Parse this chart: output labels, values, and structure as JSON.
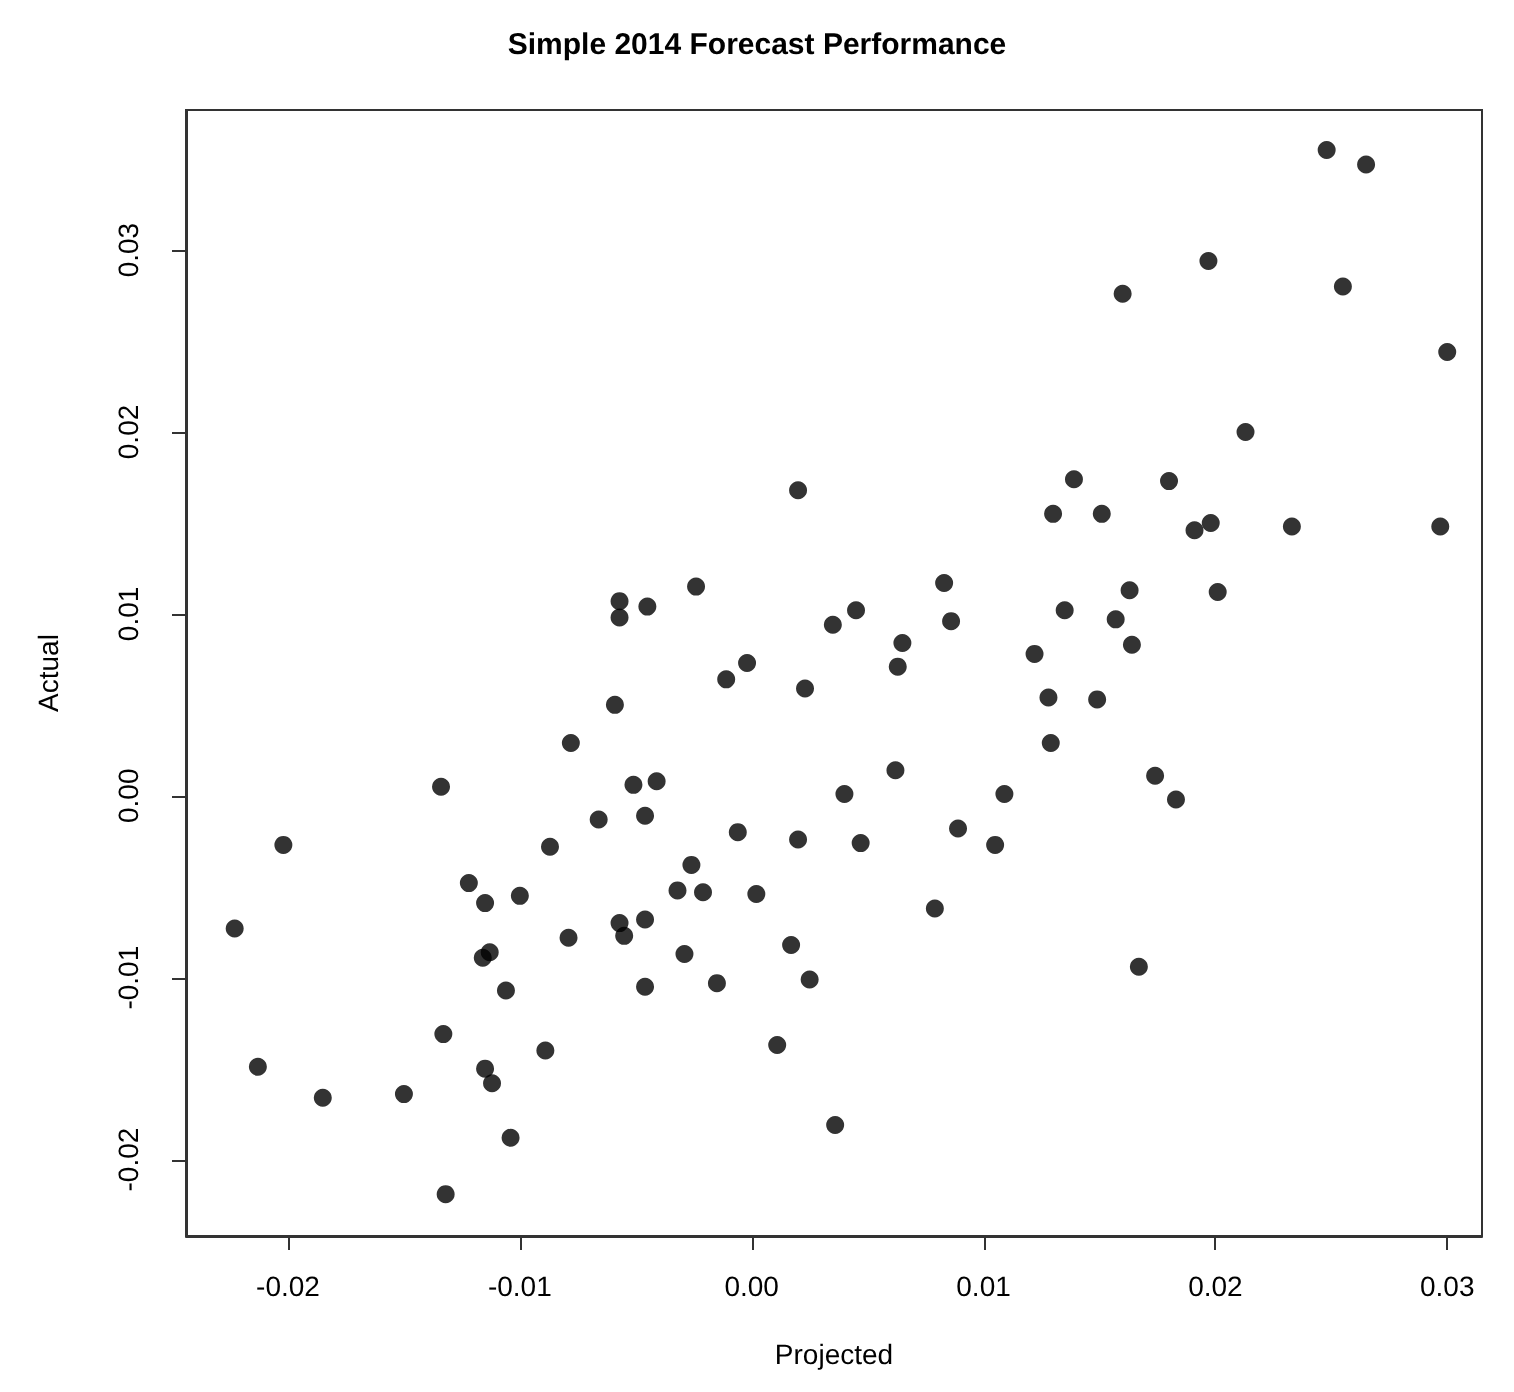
{
  "chart_data": {
    "type": "scatter",
    "title": "Simple 2014 Forecast Performance",
    "xlabel": "Projected",
    "ylabel": "Actual",
    "xlim": [
      -0.0244,
      0.0315
    ],
    "ylim": [
      -0.0242,
      0.0377
    ],
    "xticks": [
      {
        "value": -0.02,
        "label": "-0.02"
      },
      {
        "value": -0.01,
        "label": "-0.01"
      },
      {
        "value": 0,
        "label": "0.00"
      },
      {
        "value": 0.01,
        "label": "0.01"
      },
      {
        "value": 0.02,
        "label": "0.02"
      },
      {
        "value": 0.03,
        "label": "0.03"
      }
    ],
    "yticks": [
      {
        "value": -0.02,
        "label": "-0.02"
      },
      {
        "value": -0.01,
        "label": "-0.01"
      },
      {
        "value": 0,
        "label": "0.00"
      },
      {
        "value": 0.01,
        "label": "0.01"
      },
      {
        "value": 0.02,
        "label": "0.02"
      },
      {
        "value": 0.03,
        "label": "0.03"
      }
    ],
    "grid": false,
    "marker": "circle",
    "series": [
      {
        "color": "#000000",
        "x": [
          -0.0059,
          -0.0078,
          -0.0051,
          -0.0066,
          -0.0087,
          -0.0202,
          -0.0134,
          -0.0122,
          -0.0115,
          -0.01,
          -0.0223,
          -0.0079,
          -0.0057,
          -0.0055,
          -0.0116,
          -0.0113,
          -0.0106,
          -0.0133,
          -0.0213,
          -0.0185,
          -0.015,
          -0.0115,
          -0.0112,
          -0.0089,
          -0.0104,
          -0.0132,
          0.002,
          0.013,
          -0.0024,
          -0.0057,
          -0.0057,
          -0.0045,
          0.0083,
          0.0086,
          0.0045,
          0.0035,
          0.0065,
          0.0063,
          -0.0002,
          -0.0011,
          0.0023,
          0.0122,
          0.0128,
          0.0129,
          -0.0041,
          -0.0046,
          0.0062,
          0.004,
          0.0109,
          -0.0006,
          0.002,
          0.0047,
          0.0089,
          0.0105,
          -0.0026,
          -0.0032,
          -0.0021,
          0.0002,
          0.0079,
          -0.0046,
          -0.0029,
          0.0017,
          -0.0046,
          -0.0015,
          0.0025,
          0.0011,
          0.0036,
          0.0248,
          0.0265,
          0.0197,
          0.016,
          0.0255,
          0.03,
          0.0213,
          0.0139,
          0.018,
          0.0151,
          0.0191,
          0.0198,
          0.0233,
          0.0297,
          0.0163,
          0.0201,
          0.0135,
          0.0157,
          0.0164,
          0.0149,
          0.0174,
          0.0183,
          0.0167
        ],
        "values": [
          0.005,
          0.0029,
          0.0006,
          -0.0013,
          -0.0028,
          -0.0027,
          0.0005,
          -0.0048,
          -0.0059,
          -0.0055,
          -0.0073,
          -0.0078,
          -0.007,
          -0.0077,
          -0.0089,
          -0.0086,
          -0.0107,
          -0.0131,
          -0.0149,
          -0.0166,
          -0.0164,
          -0.015,
          -0.0158,
          -0.014,
          -0.0188,
          -0.0219,
          0.0168,
          0.0155,
          0.0115,
          0.0107,
          0.0098,
          0.0104,
          0.0117,
          0.0096,
          0.0102,
          0.0094,
          0.0084,
          0.0071,
          0.0073,
          0.0064,
          0.0059,
          0.0078,
          0.0054,
          0.0029,
          0.0008,
          -0.0011,
          0.0014,
          0.0001,
          0.0001,
          -0.002,
          -0.0024,
          -0.0026,
          -0.0018,
          -0.0027,
          -0.0038,
          -0.0052,
          -0.0053,
          -0.0054,
          -0.0062,
          -0.0068,
          -0.0087,
          -0.0082,
          -0.0105,
          -0.0103,
          -0.0101,
          -0.0137,
          -0.0181,
          0.0355,
          0.0347,
          0.0294,
          0.0276,
          0.028,
          0.0244,
          0.02,
          0.0174,
          0.0173,
          0.0155,
          0.0146,
          0.015,
          0.0148,
          0.0148,
          0.0113,
          0.0112,
          0.0102,
          0.0097,
          0.0083,
          0.0053,
          0.0011,
          -0.0002,
          -0.0094
        ]
      }
    ]
  }
}
